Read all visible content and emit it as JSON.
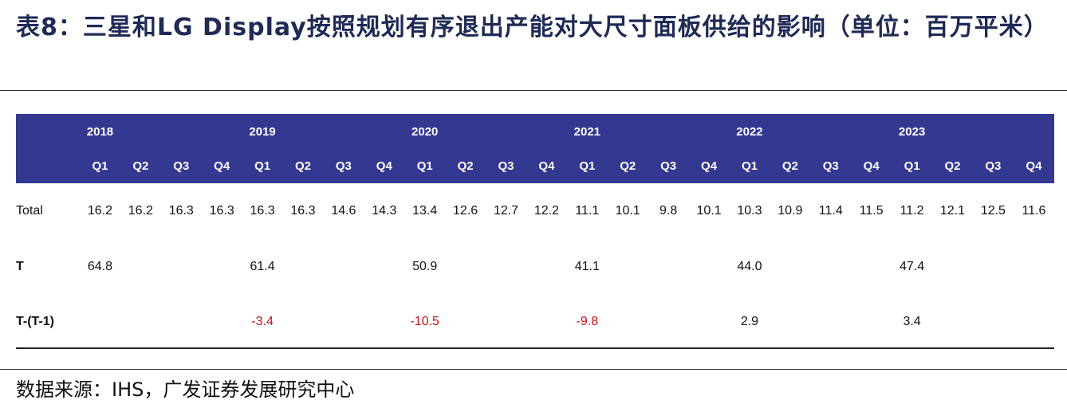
{
  "title": "表8：三星和LG Display按照规划有序退出产能对大尺寸面板供给的影响（单位：百万平米）",
  "years": [
    "2018",
    "2019",
    "2020",
    "2021",
    "2022",
    "2023"
  ],
  "quarters": [
    "Q1",
    "Q2",
    "Q3",
    "Q4"
  ],
  "rows": [
    {
      "label": "Total",
      "cells": [
        "16.2",
        "16.2",
        "16.3",
        "16.3",
        "16.3",
        "16.3",
        "14.6",
        "14.3",
        "13.4",
        "12.6",
        "12.7",
        "12.2",
        "11.1",
        "10.1",
        "9.8",
        "10.1",
        "10.3",
        "10.9",
        "11.4",
        "11.5",
        "11.2",
        "12.1",
        "12.5",
        "11.6"
      ]
    },
    {
      "label": "T",
      "cells": [
        "64.8",
        "",
        "",
        "",
        "61.4",
        "",
        "",
        "",
        "50.9",
        "",
        "",
        "",
        "41.1",
        "",
        "",
        "",
        "44.0",
        "",
        "",
        "",
        "47.4",
        "",
        "",
        ""
      ]
    },
    {
      "label": "T-(T-1)",
      "cells": [
        "",
        "",
        "",
        "",
        "-3.4",
        "",
        "",
        "",
        "-10.5",
        "",
        "",
        "",
        "-9.8",
        "",
        "",
        "",
        "2.9",
        "",
        "",
        "",
        "3.4",
        "",
        "",
        ""
      ]
    }
  ],
  "colors": {
    "header_bg": "#343890",
    "negative": "#c0101c",
    "title": "#1f2a56"
  },
  "source": "数据来源：IHS，广发证券发展研究中心"
}
